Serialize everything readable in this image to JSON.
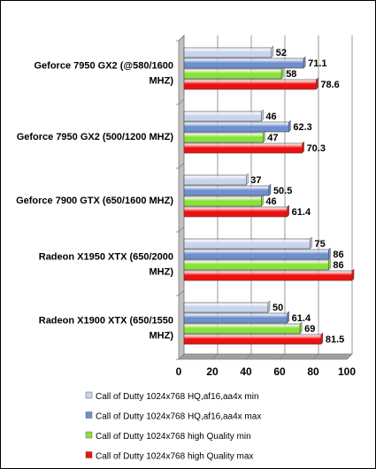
{
  "chart_data": {
    "type": "bar",
    "orientation": "horizontal",
    "categories": [
      [
        "Geforce 7950 GX2 (@580/1600",
        "MHZ)"
      ],
      [
        "Geforce 7950 GX2 (500/1200 MHZ)"
      ],
      [
        "Geforce 7900 GTX (650/1600 MHZ)"
      ],
      [
        "Radeon X1950 XTX (650/2000",
        "MHZ)"
      ],
      [
        "Radeon X1900 XTX (650/1550",
        "MHZ)"
      ]
    ],
    "series": [
      {
        "name": "Call of Dutty 1024x768 HQ,af16,aa4x min",
        "color": "#c8d4ec",
        "values": [
          52,
          46,
          37,
          75,
          50
        ]
      },
      {
        "name": "Call of Dutty 1024x768 HQ,af16,aa4x max",
        "color": "#6f8fd0",
        "values": [
          71.1,
          62.3,
          50.5,
          86,
          61.4
        ]
      },
      {
        "name": "Call of Dutty 1024x768 high Quality min",
        "color": "#8ae03c",
        "values": [
          58,
          47,
          46,
          86,
          69
        ]
      },
      {
        "name": "Call of Dutty 1024x768 high Quality max",
        "color": "#f01010",
        "values": [
          78.6,
          70.3,
          61.4,
          100,
          81.5
        ]
      }
    ],
    "data_labels": [
      [
        "52",
        "46",
        "37",
        "75",
        "50"
      ],
      [
        "71.1",
        "62.3",
        "50.5",
        "86",
        "61.4"
      ],
      [
        "58",
        "47",
        "46",
        "86",
        "69"
      ],
      [
        "78.6",
        "70.3",
        "61.4",
        "",
        "81.5"
      ]
    ],
    "xticks": [
      "0",
      "20",
      "40",
      "60",
      "80",
      "100"
    ],
    "xlim": [
      0,
      100
    ],
    "grid": true,
    "legend_position": "bottom"
  }
}
